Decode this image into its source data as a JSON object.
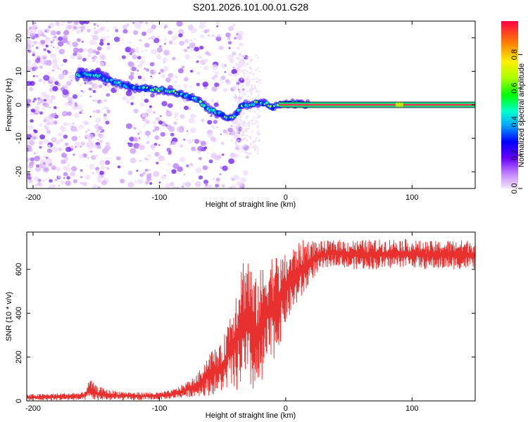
{
  "title": "S201.2026.101.00.01.G28",
  "colors": {
    "snr_line": "#e8302e",
    "spectrum_low": "#e5c8ff",
    "spectrum_mid": "#6a1bff",
    "frame": "#000000"
  },
  "chart_data": [
    {
      "type": "heatmap",
      "name": "spectrogram",
      "xlabel": "Height of straight line (km)",
      "ylabel": "Frequency (Hz)",
      "xlim": [
        -205,
        150
      ],
      "ylim": [
        -25,
        25
      ],
      "xticks": [
        -200,
        -100,
        0,
        100
      ],
      "xtick_labels": [
        "-200",
        "-100",
        "0",
        "100"
      ],
      "yticks": [
        -20,
        -10,
        0,
        10,
        20
      ],
      "ytick_labels": [
        "-20",
        "-10",
        "0",
        "10",
        "20"
      ],
      "ridge": {
        "x": [
          -160,
          -150,
          -145,
          -120,
          -100,
          -90,
          -80,
          -70,
          -60,
          -50,
          -45,
          -40,
          -35,
          -30,
          -25,
          -20,
          -15,
          -10,
          -5,
          0,
          5,
          10,
          15,
          20,
          40,
          60,
          90,
          150
        ],
        "y": [
          9,
          9,
          8,
          5,
          4.5,
          4,
          3,
          1.5,
          -1.5,
          -3,
          -4,
          -3,
          0,
          0,
          0.5,
          0.5,
          0.5,
          -1,
          0.5,
          0.2,
          0.5,
          0.3,
          0.2,
          0,
          0,
          0,
          0,
          0
        ]
      },
      "colorbar": {
        "label": "Normalized spectral amplitude",
        "range": [
          0,
          1
        ],
        "ticks": [
          0.0,
          0.2,
          0.4,
          0.6,
          0.8
        ],
        "tick_labels": [
          "0.0",
          "0.2",
          "0.4",
          "0.6",
          "0.8"
        ]
      }
    },
    {
      "type": "line",
      "name": "snr",
      "xlabel": "Height of straight line (km)",
      "ylabel": "SNR (10 * v/v)",
      "xlim": [
        -205,
        150
      ],
      "ylim": [
        0,
        770
      ],
      "xticks": [
        -200,
        -100,
        0,
        100
      ],
      "xtick_labels": [
        "-200",
        "-100",
        "0",
        "100"
      ],
      "yticks": [
        0,
        200,
        400,
        600
      ],
      "ytick_labels": [
        "0",
        "200",
        "400",
        "600"
      ],
      "series": [
        {
          "name": "SNR",
          "envelope": {
            "x": [
              -205,
              -160,
              -155,
              -150,
              -140,
              -120,
              -100,
              -90,
              -80,
              -70,
              -60,
              -50,
              -45,
              -40,
              -35,
              -30,
              -25,
              -20,
              -15,
              -10,
              -5,
              0,
              5,
              10,
              15,
              20,
              25,
              30,
              40,
              50,
              60,
              70,
              80,
              90,
              100,
              110,
              120,
              130,
              140,
              150
            ],
            "lo": [
              2,
              2,
              5,
              2,
              2,
              2,
              5,
              10,
              15,
              20,
              25,
              40,
              60,
              30,
              60,
              40,
              30,
              20,
              150,
              180,
              250,
              350,
              400,
              450,
              480,
              550,
              580,
              600,
              620,
              600,
              600,
              600,
              600,
              610,
              610,
              600,
              600,
              600,
              600,
              600
            ],
            "hi": [
              30,
              40,
              100,
              70,
              50,
              40,
              40,
              50,
              80,
              120,
              230,
              260,
              400,
              500,
              650,
              700,
              550,
              600,
              650,
              680,
              660,
              670,
              700,
              720,
              740,
              735,
              730,
              730,
              735,
              735,
              735,
              735,
              740,
              740,
              735,
              730,
              730,
              735,
              735,
              735
            ]
          }
        }
      ]
    }
  ]
}
